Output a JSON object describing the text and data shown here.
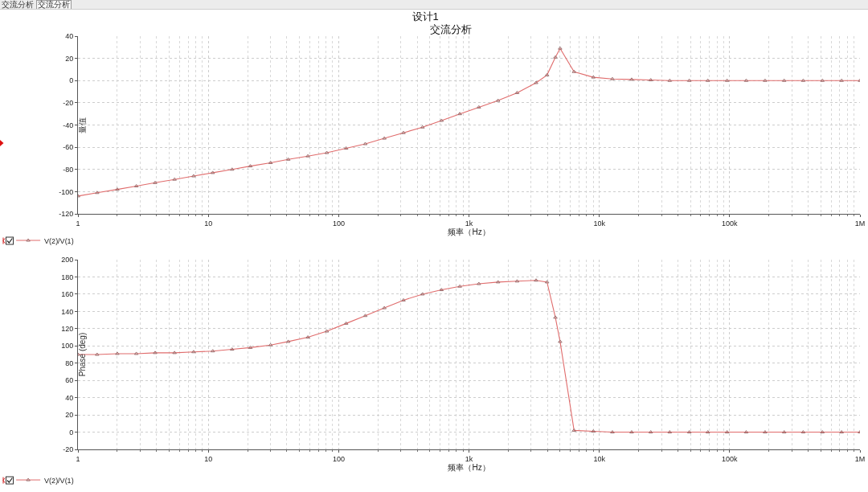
{
  "chart_data": [
    {
      "type": "line",
      "title": "设计1",
      "subtitle": "交流分析",
      "xlabel": "频率（Hz）",
      "ylabel": "量值",
      "annotations": [
        "交流分析",
        "交流分析"
      ],
      "x": [
        1,
        1.4,
        2,
        2.8,
        3.9,
        5.5,
        7.7,
        10.8,
        15.2,
        21,
        30,
        41,
        58,
        81,
        114,
        160,
        224,
        314,
        440,
        615,
        850,
        1190,
        1670,
        2340,
        3270,
        3970,
        4600,
        5000,
        6400,
        9000,
        12600,
        17700,
        24800,
        34700,
        49000,
        68000,
        95500,
        134000,
        187000,
        262000,
        367000,
        515000,
        723000,
        1000000
      ],
      "series": [
        {
          "name": "V(2)/V(1)",
          "color": "#e06c6c",
          "values": [
            -104,
            -101,
            -98,
            -95,
            -92,
            -89,
            -86,
            -83,
            -80,
            -77,
            -74,
            -71,
            -68,
            -65,
            -61,
            -57,
            -52,
            -47,
            -42,
            -36,
            -30,
            -24,
            -18,
            -11,
            -2,
            5,
            21,
            29,
            8,
            3,
            1.5,
            1,
            0.5,
            0,
            0,
            0,
            0,
            0,
            0,
            0,
            0,
            0,
            0,
            0
          ]
        }
      ],
      "xlim": [
        1,
        1000000
      ],
      "xticks": [
        1,
        10,
        100,
        {
          "value": 1000,
          "label": "1k"
        },
        {
          "value": 10000,
          "label": "10k"
        },
        {
          "value": 100000,
          "label": "100k"
        },
        {
          "value": 1000000,
          "label": "1M"
        }
      ],
      "ylim": [
        -120,
        40
      ],
      "yticks": [
        -120,
        -100,
        -80,
        -60,
        -40,
        -20,
        0,
        20,
        40
      ],
      "log": "x",
      "grid": true,
      "legend": "bottom left",
      "marker": "triangle",
      "line_style": "solid"
    },
    {
      "type": "line",
      "xlabel": "频率（Hz）",
      "ylabel": "Phase (deg)",
      "x": [
        1,
        1.4,
        2,
        2.8,
        3.9,
        5.5,
        7.7,
        10.8,
        15.2,
        21,
        30,
        41,
        58,
        81,
        114,
        160,
        224,
        314,
        440,
        615,
        850,
        1190,
        1670,
        2340,
        3270,
        3970,
        4600,
        5000,
        6400,
        9000,
        12600,
        17700,
        24800,
        34700,
        49000,
        68000,
        95500,
        134000,
        187000,
        262000,
        367000,
        515000,
        723000,
        1000000
      ],
      "series": [
        {
          "name": "V(2)/V(1)",
          "color": "#e06c6c",
          "values": [
            90,
            90,
            91,
            91,
            92,
            92,
            93,
            94,
            96,
            98,
            101,
            105,
            110,
            117,
            126,
            135,
            144,
            153,
            160,
            165,
            169,
            172,
            174,
            175,
            176,
            174,
            133,
            105,
            2,
            1,
            0,
            0,
            0,
            0,
            0,
            0,
            0,
            0,
            0,
            0,
            0,
            0,
            0,
            0
          ]
        }
      ],
      "xlim": [
        1,
        1000000
      ],
      "xticks": [
        1,
        10,
        100,
        {
          "value": 1000,
          "label": "1k"
        },
        {
          "value": 10000,
          "label": "10k"
        },
        {
          "value": 100000,
          "label": "100k"
        },
        {
          "value": 1000000,
          "label": "1M"
        }
      ],
      "ylim": [
        -20,
        200
      ],
      "yticks": [
        -20,
        0,
        20,
        40,
        60,
        80,
        100,
        120,
        140,
        160,
        180,
        200
      ],
      "log": "x",
      "grid": true,
      "legend": "bottom left",
      "marker": "triangle",
      "line_style": "solid"
    }
  ]
}
